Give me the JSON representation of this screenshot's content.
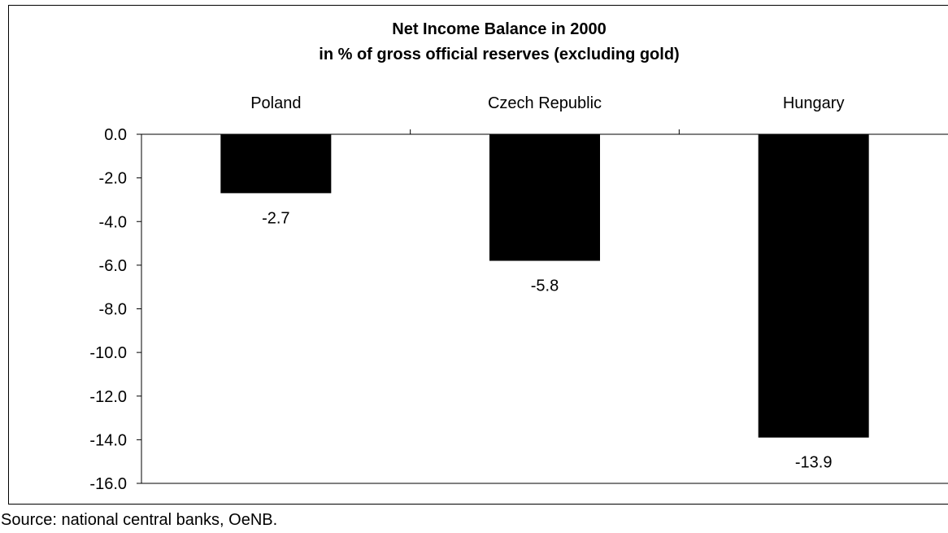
{
  "chart_data": {
    "type": "bar",
    "title": "Net Income Balance in 2000",
    "subtitle": "in % of gross official reserves (excluding gold)",
    "categories": [
      "Poland",
      "Czech Republic",
      "Hungary"
    ],
    "values": [
      -2.7,
      -5.8,
      -13.9
    ],
    "data_labels": [
      "-2.7",
      "-5.8",
      "-13.9"
    ],
    "yticks": [
      0,
      -2,
      -4,
      -6,
      -8,
      -10,
      -12,
      -14,
      -16
    ],
    "ytick_labels": [
      "0.0",
      "-2.0",
      "-4.0",
      "-6.0",
      "-8.0",
      "-10.0",
      "-12.0",
      "-14.0",
      "-16.0"
    ],
    "ylim": [
      -16,
      0
    ],
    "xlabel": "",
    "ylabel": "",
    "category_axis_position": "top",
    "grid": false,
    "legend": "none",
    "bar_color": "#000000"
  },
  "source_note": "Source: national central banks, OeNB."
}
